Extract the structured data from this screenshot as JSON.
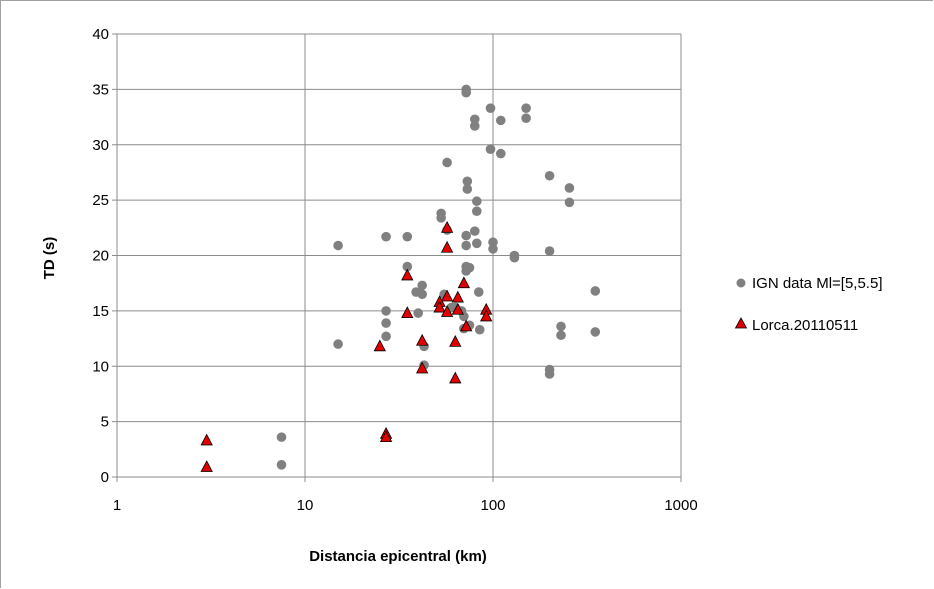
{
  "chart_data": {
    "type": "scatter",
    "xlabel": "Distancia epicentral (km)",
    "ylabel": "TD (s)",
    "x_scale": "log",
    "xlim": [
      1,
      1000
    ],
    "ylim": [
      0,
      40
    ],
    "x_ticks": [
      "1",
      "10",
      "100",
      "1000"
    ],
    "y_ticks": [
      "0",
      "5",
      "10",
      "15",
      "20",
      "25",
      "30",
      "35",
      "40"
    ],
    "grid": "major gridlines on both axes",
    "legend_position": "right",
    "series": [
      {
        "name": "IGN data Ml=[5,5.5]",
        "marker": "circle",
        "color": "#808080",
        "points": [
          [
            7.5,
            3.6
          ],
          [
            7.5,
            1.1
          ],
          [
            15,
            20.9
          ],
          [
            15,
            12.0
          ],
          [
            27,
            21.7
          ],
          [
            27,
            15.0
          ],
          [
            27,
            13.9
          ],
          [
            27,
            12.7
          ],
          [
            35,
            21.7
          ],
          [
            35,
            19.0
          ],
          [
            39,
            16.7
          ],
          [
            40,
            14.8
          ],
          [
            42,
            17.3
          ],
          [
            42,
            16.5
          ],
          [
            43,
            11.8
          ],
          [
            43,
            10.1
          ],
          [
            53,
            23.8
          ],
          [
            53,
            23.4
          ],
          [
            55,
            16.5
          ],
          [
            57,
            28.4
          ],
          [
            57,
            22.3
          ],
          [
            60,
            15.3
          ],
          [
            63,
            15.3
          ],
          [
            68,
            15.0
          ],
          [
            70,
            14.5
          ],
          [
            70,
            13.4
          ],
          [
            72,
            35.0
          ],
          [
            72,
            34.7
          ],
          [
            72,
            21.8
          ],
          [
            72,
            20.9
          ],
          [
            72,
            19.0
          ],
          [
            72,
            18.6
          ],
          [
            73,
            26.7
          ],
          [
            73,
            26.0
          ],
          [
            75,
            18.9
          ],
          [
            75,
            13.7
          ],
          [
            80,
            32.3
          ],
          [
            80,
            31.7
          ],
          [
            80,
            22.2
          ],
          [
            82,
            24.9
          ],
          [
            82,
            24.0
          ],
          [
            82,
            21.1
          ],
          [
            84,
            16.7
          ],
          [
            85,
            13.3
          ],
          [
            97,
            33.3
          ],
          [
            97,
            29.6
          ],
          [
            100,
            21.2
          ],
          [
            100,
            20.6
          ],
          [
            110,
            32.2
          ],
          [
            110,
            29.2
          ],
          [
            130,
            20.0
          ],
          [
            130,
            19.8
          ],
          [
            150,
            33.3
          ],
          [
            150,
            32.4
          ],
          [
            200,
            27.2
          ],
          [
            200,
            20.4
          ],
          [
            200,
            9.7
          ],
          [
            200,
            9.3
          ],
          [
            230,
            13.6
          ],
          [
            230,
            12.8
          ],
          [
            255,
            26.1
          ],
          [
            255,
            24.8
          ],
          [
            350,
            16.8
          ],
          [
            350,
            13.1
          ]
        ]
      },
      {
        "name": "Lorca.20110511",
        "marker": "triangle",
        "color": "#e00000",
        "points": [
          [
            3,
            3.3
          ],
          [
            3,
            0.9
          ],
          [
            25,
            11.8
          ],
          [
            27,
            3.9
          ],
          [
            27,
            3.6
          ],
          [
            35,
            18.2
          ],
          [
            35,
            14.8
          ],
          [
            42,
            12.3
          ],
          [
            42,
            9.8
          ],
          [
            52,
            15.8
          ],
          [
            52,
            15.3
          ],
          [
            57,
            22.5
          ],
          [
            57,
            20.7
          ],
          [
            57,
            16.3
          ],
          [
            57,
            14.9
          ],
          [
            65,
            16.2
          ],
          [
            65,
            15.1
          ],
          [
            63,
            12.2
          ],
          [
            63,
            8.9
          ],
          [
            70,
            17.5
          ],
          [
            72,
            13.6
          ],
          [
            92,
            15.1
          ],
          [
            92,
            14.5
          ]
        ]
      }
    ]
  }
}
